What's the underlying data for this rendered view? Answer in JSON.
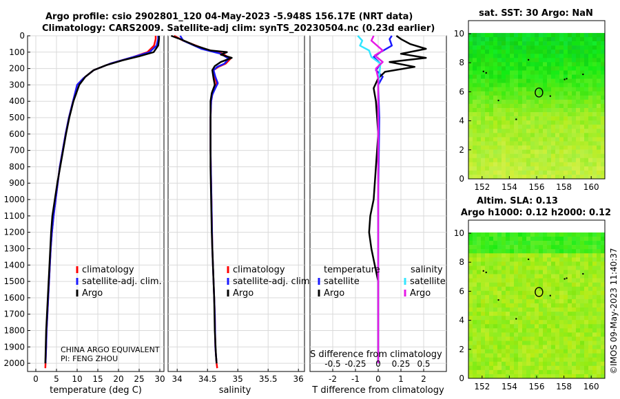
{
  "header": {
    "title_line1": "Argo profile: csio 2902801_120 04-May-2023 -5.948S 156.17E (NRT data)",
    "title_line2": "Climatology: CARS2009. Satellite-adj clim: synTS_20230504.nc (0.23d earlier)"
  },
  "side_stamp": "©IMOS 09-May-2023 11:40:37",
  "credit": {
    "line1": "CHINA ARGO EQUIVALENT",
    "line2": "PI: FENG ZHOU"
  },
  "colors": {
    "climatology": "#ff0000",
    "satellite": "#1a1aff",
    "argo": "#000000",
    "sat_salinity": "#33e6ff",
    "argo_salinity": "#e619e6"
  },
  "chart_data": [
    {
      "type": "line",
      "panel": "temperature",
      "xlabel": "temperature (deg C)",
      "ylabel": "",
      "xlim": [
        -2,
        31
      ],
      "ylim": [
        2050,
        0
      ],
      "xticks": [
        0,
        5,
        10,
        15,
        20,
        25,
        30
      ],
      "yticks": [
        0,
        100,
        200,
        300,
        400,
        500,
        600,
        700,
        800,
        900,
        1000,
        1100,
        1200,
        1300,
        1400,
        1500,
        1600,
        1700,
        1800,
        1900,
        2000
      ],
      "legend": [
        "climatology",
        "satellite-adj. clim.",
        "Argo"
      ],
      "series": [
        {
          "name": "climatology",
          "color": "#ff0000",
          "points": [
            [
              29.0,
              0
            ],
            [
              29.0,
              20
            ],
            [
              28.6,
              60
            ],
            [
              27.0,
              100
            ],
            [
              23.5,
              130
            ],
            [
              18,
              170
            ],
            [
              14,
              210
            ],
            [
              11.5,
              260
            ],
            [
              10,
              300
            ],
            [
              9.0,
              400
            ],
            [
              8.0,
              500
            ],
            [
              7.2,
              600
            ],
            [
              6.5,
              700
            ],
            [
              5.8,
              800
            ],
            [
              5.3,
              900
            ],
            [
              4.8,
              1000
            ],
            [
              4.3,
              1100
            ],
            [
              3.9,
              1200
            ],
            [
              3.6,
              1300
            ],
            [
              3.4,
              1400
            ],
            [
              3.2,
              1500
            ],
            [
              3.0,
              1600
            ],
            [
              2.8,
              1700
            ],
            [
              2.6,
              1800
            ],
            [
              2.5,
              1900
            ],
            [
              2.35,
              2000
            ],
            [
              2.3,
              2030
            ]
          ]
        },
        {
          "name": "satellite-adj. clim.",
          "color": "#1a1aff",
          "points": [
            [
              29.6,
              0
            ],
            [
              29.6,
              20
            ],
            [
              29.2,
              60
            ],
            [
              27.5,
              100
            ],
            [
              23.5,
              130
            ],
            [
              18,
              170
            ],
            [
              14,
              210
            ],
            [
              11.5,
              260
            ],
            [
              10,
              300
            ],
            [
              9.0,
              400
            ],
            [
              8.0,
              500
            ],
            [
              7.2,
              600
            ],
            [
              6.5,
              700
            ],
            [
              5.8,
              800
            ],
            [
              5.3,
              900
            ],
            [
              4.8,
              1000
            ],
            [
              4.3,
              1100
            ],
            [
              3.9,
              1200
            ],
            [
              3.6,
              1300
            ],
            [
              3.4,
              1400
            ],
            [
              3.2,
              1500
            ],
            [
              3.0,
              1600
            ],
            [
              2.8,
              1700
            ],
            [
              2.6,
              1800
            ],
            [
              2.5,
              1900
            ],
            [
              2.35,
              2000
            ]
          ]
        },
        {
          "name": "Argo",
          "color": "#000000",
          "points": [
            [
              29.8,
              0
            ],
            [
              29.8,
              20
            ],
            [
              29.6,
              60
            ],
            [
              28.5,
              100
            ],
            [
              25,
              125
            ],
            [
              21,
              150
            ],
            [
              17,
              180
            ],
            [
              14,
              210
            ],
            [
              12,
              250
            ],
            [
              10.5,
              300
            ],
            [
              9.1,
              400
            ],
            [
              8.1,
              500
            ],
            [
              7.3,
              600
            ],
            [
              6.6,
              700
            ],
            [
              5.9,
              800
            ],
            [
              5.2,
              900
            ],
            [
              4.6,
              1000
            ],
            [
              4.0,
              1100
            ],
            [
              3.7,
              1200
            ],
            [
              3.5,
              1300
            ],
            [
              3.3,
              1400
            ],
            [
              3.1,
              1500
            ],
            [
              2.9,
              1600
            ],
            [
              2.7,
              1700
            ],
            [
              2.5,
              1800
            ],
            [
              2.4,
              1900
            ],
            [
              2.3,
              2000
            ]
          ]
        }
      ]
    },
    {
      "type": "line",
      "panel": "salinity",
      "xlabel": "salinity",
      "xlim": [
        33.85,
        36.1
      ],
      "ylim": [
        2050,
        0
      ],
      "xticks": [
        34,
        34.5,
        35,
        35.5,
        36
      ],
      "legend": [
        "climatology",
        "satellite-adj. clim.",
        "Argo"
      ],
      "series": [
        {
          "name": "climatology",
          "color": "#ff0000",
          "points": [
            [
              33.95,
              0
            ],
            [
              34.1,
              30
            ],
            [
              34.45,
              80
            ],
            [
              34.75,
              110
            ],
            [
              34.88,
              140
            ],
            [
              34.8,
              170
            ],
            [
              34.68,
              190
            ],
            [
              34.6,
              210
            ],
            [
              34.62,
              250
            ],
            [
              34.65,
              290
            ],
            [
              34.62,
              320
            ],
            [
              34.58,
              360
            ],
            [
              34.56,
              400
            ],
            [
              34.55,
              500
            ],
            [
              34.55,
              700
            ],
            [
              34.56,
              900
            ],
            [
              34.57,
              1100
            ],
            [
              34.58,
              1300
            ],
            [
              34.6,
              1500
            ],
            [
              34.62,
              1700
            ],
            [
              34.63,
              1900
            ],
            [
              34.65,
              2000
            ],
            [
              34.66,
              2030
            ]
          ]
        },
        {
          "name": "satellite-adj. clim.",
          "color": "#1a1aff",
          "points": [
            [
              34.05,
              0
            ],
            [
              34.1,
              30
            ],
            [
              34.4,
              80
            ],
            [
              34.72,
              110
            ],
            [
              34.85,
              140
            ],
            [
              34.78,
              170
            ],
            [
              34.66,
              190
            ],
            [
              34.6,
              210
            ],
            [
              34.63,
              250
            ],
            [
              34.67,
              290
            ],
            [
              34.63,
              320
            ],
            [
              34.58,
              360
            ],
            [
              34.56,
              400
            ],
            [
              34.55,
              500
            ],
            [
              34.55,
              700
            ],
            [
              34.56,
              900
            ],
            [
              34.57,
              1100
            ],
            [
              34.58,
              1300
            ],
            [
              34.6,
              1500
            ],
            [
              34.62,
              1700
            ],
            [
              34.63,
              1900
            ],
            [
              34.65,
              2000
            ]
          ]
        },
        {
          "name": "Argo",
          "color": "#000000",
          "points": [
            [
              33.9,
              0
            ],
            [
              34.05,
              20
            ],
            [
              34.3,
              60
            ],
            [
              34.55,
              90
            ],
            [
              34.82,
              100
            ],
            [
              34.72,
              115
            ],
            [
              34.9,
              135
            ],
            [
              34.72,
              160
            ],
            [
              34.62,
              185
            ],
            [
              34.58,
              210
            ],
            [
              34.6,
              260
            ],
            [
              34.62,
              300
            ],
            [
              34.57,
              350
            ],
            [
              34.55,
              400
            ],
            [
              34.55,
              600
            ],
            [
              34.55,
              800
            ],
            [
              34.56,
              1000
            ],
            [
              34.57,
              1200
            ],
            [
              34.59,
              1400
            ],
            [
              34.61,
              1600
            ],
            [
              34.62,
              1800
            ],
            [
              34.64,
              1950
            ],
            [
              34.65,
              2000
            ]
          ]
        }
      ]
    },
    {
      "type": "line",
      "panel": "difference",
      "xlabel": "T difference from climatology",
      "xlabel2": "S difference from climatology",
      "xlim": [
        -3,
        3
      ],
      "ylim": [
        2050,
        0
      ],
      "xticks": [
        -2,
        -1,
        0,
        1,
        2
      ],
      "xticks2": [
        "-0.5",
        "-0.25",
        "0",
        "0.25",
        "0.5"
      ],
      "legend_titles": [
        "temperature",
        "salinity"
      ],
      "legend_left": [
        "satellite",
        "Argo"
      ],
      "legend_right": [
        "satellite",
        "Argo"
      ],
      "series": [
        {
          "name": "T satellite",
          "color": "#1a1aff",
          "points": [
            [
              0.6,
              0
            ],
            [
              0.5,
              20
            ],
            [
              0.6,
              60
            ],
            [
              0.1,
              100
            ],
            [
              -0.2,
              130
            ],
            [
              0.1,
              170
            ],
            [
              -0.1,
              210
            ],
            [
              0.2,
              250
            ],
            [
              0.0,
              300
            ],
            [
              0.05,
              500
            ],
            [
              0.0,
              1000
            ],
            [
              0.0,
              2000
            ]
          ]
        },
        {
          "name": "T Argo",
          "color": "#000000",
          "points": [
            [
              0.8,
              0
            ],
            [
              1.0,
              20
            ],
            [
              1.4,
              50
            ],
            [
              2.1,
              80
            ],
            [
              1.0,
              110
            ],
            [
              2.1,
              135
            ],
            [
              0.5,
              160
            ],
            [
              1.6,
              190
            ],
            [
              0.3,
              220
            ],
            [
              0.0,
              260
            ],
            [
              -0.2,
              320
            ],
            [
              -0.1,
              400
            ],
            [
              -0.05,
              500
            ],
            [
              0.0,
              600
            ],
            [
              -0.1,
              800
            ],
            [
              -0.2,
              1000
            ],
            [
              -0.35,
              1100
            ],
            [
              -0.4,
              1200
            ],
            [
              -0.3,
              1300
            ],
            [
              -0.15,
              1400
            ],
            [
              0.0,
              1500
            ],
            [
              0.0,
              2000
            ]
          ]
        },
        {
          "name": "S satellite",
          "color": "#33e6ff",
          "points": [
            [
              -0.9,
              0
            ],
            [
              -0.7,
              30
            ],
            [
              -0.8,
              60
            ],
            [
              -0.4,
              90
            ],
            [
              -0.3,
              130
            ],
            [
              0.1,
              170
            ],
            [
              0.0,
              300
            ],
            [
              0.0,
              500
            ],
            [
              0.0,
              1000
            ],
            [
              0.0,
              2000
            ]
          ]
        },
        {
          "name": "S Argo",
          "color": "#e619e6",
          "points": [
            [
              -0.2,
              0
            ],
            [
              -0.3,
              30
            ],
            [
              -0.05,
              60
            ],
            [
              0.2,
              90
            ],
            [
              -0.15,
              120
            ],
            [
              0.2,
              160
            ],
            [
              -0.1,
              200
            ],
            [
              0.0,
              260
            ],
            [
              0.0,
              500
            ],
            [
              0.0,
              1000
            ],
            [
              0.0,
              2000
            ]
          ]
        }
      ]
    },
    {
      "type": "heatmap",
      "panel": "sst-map",
      "title": "sat. SST: 30 Argo: NaN",
      "xlim": [
        151,
        161
      ],
      "ylim": [
        0,
        10
      ],
      "xticks": [
        152,
        154,
        156,
        158,
        160
      ],
      "yticks": [
        0,
        2,
        4,
        6,
        8,
        10
      ],
      "marker": {
        "lon": 156.17,
        "lat": 5.95
      }
    },
    {
      "type": "heatmap",
      "panel": "sla-map",
      "title": "Altim. SLA: 0.13",
      "subtitle": "Argo h1000: 0.12 h2000: 0.12",
      "xlim": [
        151,
        161
      ],
      "ylim": [
        0,
        10
      ],
      "xticks": [
        152,
        154,
        156,
        158,
        160
      ],
      "yticks": [
        0,
        2,
        4,
        6,
        8,
        10
      ],
      "marker": {
        "lon": 156.17,
        "lat": 5.95
      }
    }
  ]
}
